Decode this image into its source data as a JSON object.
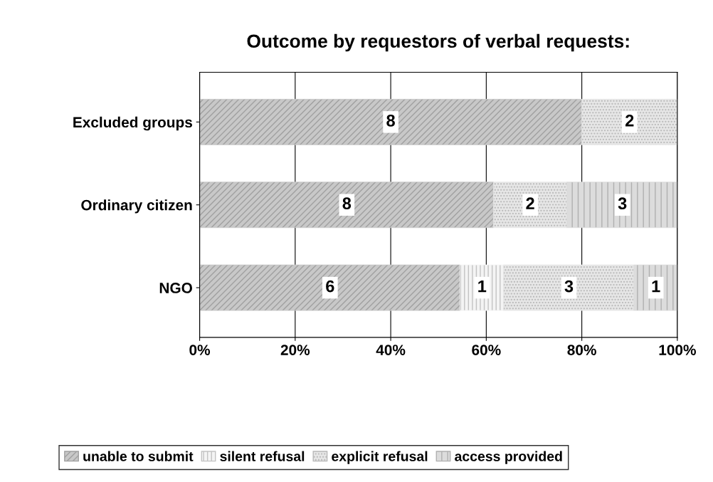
{
  "chart_data": {
    "type": "bar",
    "orientation": "horizontal",
    "stacked": true,
    "title": "Outcome by requestors of verbal requests:",
    "categories": [
      "Excluded groups",
      "Ordinary citizen",
      "NGO"
    ],
    "series": [
      {
        "name": "unable to submit",
        "color": "#c8c8c8",
        "values": [
          80,
          61.5,
          54.5
        ]
      },
      {
        "name": "silent refusal",
        "color": "#f4f4f4",
        "values": [
          null,
          null,
          9.1
        ]
      },
      {
        "name": "explicit refusal",
        "color": "#e6e6e6",
        "values": [
          20,
          15.4,
          27.3
        ]
      },
      {
        "name": "access provided",
        "color": "#dcdcdc",
        "values": [
          null,
          23.1,
          9.1
        ]
      }
    ],
    "annotations": [
      {
        "text": "8",
        "x": 40,
        "y": "Excluded groups"
      },
      {
        "text": "2",
        "x": 90,
        "y": "Excluded groups"
      },
      {
        "text": "8",
        "x": 30.8,
        "y": "Ordinary citizen"
      },
      {
        "text": "2",
        "x": 69.2,
        "y": "Ordinary citizen"
      },
      {
        "text": "3",
        "x": 88.5,
        "y": "Ordinary citizen"
      },
      {
        "text": "6",
        "x": 27.3,
        "y": "NGO"
      },
      {
        "text": "1",
        "x": 59.1,
        "y": "NGO"
      },
      {
        "text": "3",
        "x": 77.3,
        "y": "NGO"
      },
      {
        "text": "1",
        "x": 95.5,
        "y": "NGO"
      }
    ],
    "xlim": [
      0,
      100
    ],
    "xticks": [
      {
        "value": 0,
        "label": "0%"
      },
      {
        "value": 20,
        "label": "20%"
      },
      {
        "value": 40,
        "label": "40%"
      },
      {
        "value": 60,
        "label": "60%"
      },
      {
        "value": 80,
        "label": "80%"
      },
      {
        "value": 100,
        "label": "100%"
      }
    ],
    "grid": "x",
    "legend": "bottom"
  }
}
